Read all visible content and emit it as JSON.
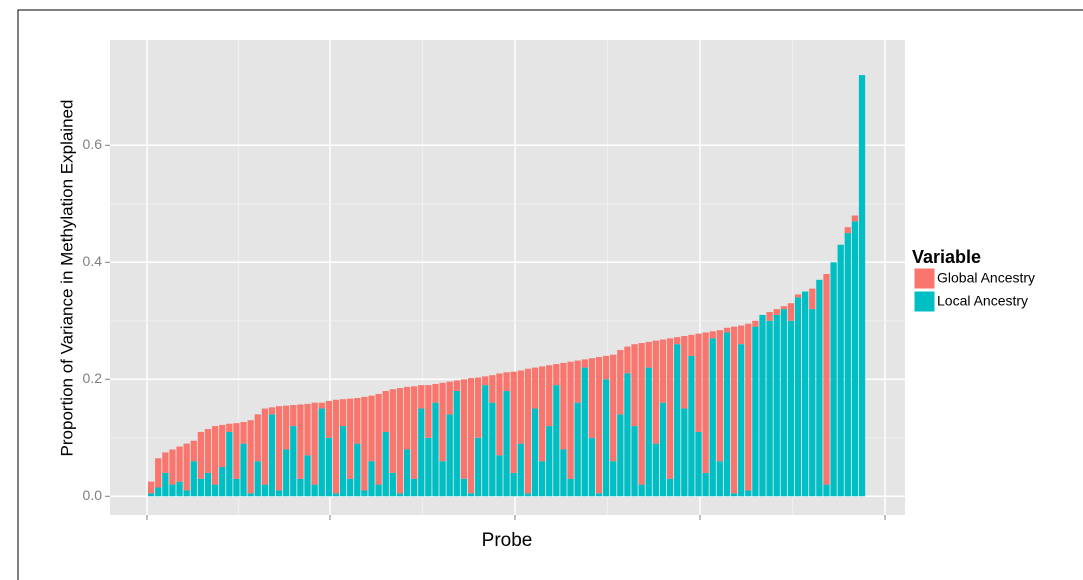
{
  "chart_data": {
    "type": "stacked_bar",
    "x_label": "Probe",
    "y_label": "Proportion of Variance in Methylation Explained",
    "legend_title": "Variable",
    "categories": [
      null,
      null,
      null,
      null,
      null,
      null,
      null,
      null,
      null,
      null,
      null,
      null,
      null,
      null,
      null,
      null,
      null,
      null,
      null,
      null,
      null,
      null,
      null,
      null,
      null,
      null,
      null,
      null,
      null,
      null,
      null,
      null,
      null,
      null,
      null,
      null,
      null,
      null,
      null,
      null,
      null,
      null,
      null,
      null,
      null,
      null,
      null,
      null,
      null,
      null,
      null,
      null,
      null,
      null,
      null,
      null,
      null,
      null,
      null,
      null,
      null,
      null,
      null,
      null,
      null,
      null,
      null,
      null,
      null,
      null,
      null,
      null,
      null,
      null,
      null,
      null,
      null,
      null,
      null,
      null,
      null,
      null,
      null,
      null,
      null,
      null,
      null,
      null,
      null,
      null,
      null,
      null,
      null,
      null,
      null,
      null,
      null,
      null,
      null,
      null,
      null
    ],
    "series": [
      {
        "name": "Global Ancestry",
        "color": "#F8766D",
        "values": [
          0.02,
          0.05,
          0.035,
          0.06,
          0.06,
          0.08,
          0.035,
          0.08,
          0.075,
          0.1,
          0.072,
          0.014,
          0.095,
          0.037,
          0.125,
          0.08,
          0.13,
          0.012,
          0.144,
          0.075,
          0.036,
          0.127,
          0.088,
          0.14,
          0.01,
          0.063,
          0.16,
          0.046,
          0.137,
          0.078,
          0.16,
          0.112,
          0.155,
          0.07,
          0.143,
          0.18,
          0.107,
          0.158,
          0.04,
          0.09,
          0.032,
          0.134,
          0.056,
          0.018,
          0.17,
          0.197,
          0.103,
          0.015,
          0.047,
          0.14,
          0.032,
          0.173,
          0.125,
          0.213,
          0.07,
          0.162,
          0.104,
          0.036,
          0.148,
          0.2,
          0.072,
          0.014,
          0.136,
          0.233,
          0.04,
          0.182,
          0.11,
          0.046,
          0.14,
          0.242,
          0.044,
          0.176,
          0.108,
          0.24,
          0.012,
          0.124,
          0.036,
          0.168,
          0.24,
          0.012,
          0.224,
          0.008,
          0.285,
          0.032,
          0.285,
          0.01,
          0,
          0.015,
          0.01,
          0.005,
          0.03,
          0.005,
          0,
          0.035,
          0,
          0.36,
          0,
          0,
          0.01,
          0.01,
          0
        ]
      },
      {
        "name": "Local Ancestry",
        "color": "#00BFC4",
        "values": [
          0.005,
          0.015,
          0.04,
          0.02,
          0.025,
          0.01,
          0.06,
          0.03,
          0.04,
          0.02,
          0.05,
          0.11,
          0.03,
          0.09,
          0.005,
          0.06,
          0.02,
          0.14,
          0.01,
          0.08,
          0.12,
          0.03,
          0.07,
          0.02,
          0.15,
          0.1,
          0.005,
          0.12,
          0.03,
          0.09,
          0.01,
          0.06,
          0.02,
          0.11,
          0.04,
          0.005,
          0.08,
          0.03,
          0.15,
          0.1,
          0.16,
          0.06,
          0.14,
          0.18,
          0.03,
          0.005,
          0.1,
          0.19,
          0.16,
          0.07,
          0.18,
          0.04,
          0.09,
          0.005,
          0.15,
          0.06,
          0.12,
          0.19,
          0.08,
          0.03,
          0.16,
          0.22,
          0.1,
          0.005,
          0.2,
          0.06,
          0.14,
          0.21,
          0.12,
          0.02,
          0.22,
          0.09,
          0.16,
          0.03,
          0.26,
          0.15,
          0.24,
          0.11,
          0.04,
          0.27,
          0.06,
          0.28,
          0.005,
          0.26,
          0.01,
          0.29,
          0.31,
          0.3,
          0.31,
          0.32,
          0.3,
          0.34,
          0.35,
          0.32,
          0.37,
          0.02,
          0.4,
          0.43,
          0.45,
          0.47,
          0.72
        ]
      }
    ],
    "ylim": [
      -0.032,
      0.78
    ],
    "yticks": [
      {
        "value": 0,
        "label": "0.0"
      },
      0.2,
      0.4,
      0.6
    ],
    "grid": true
  }
}
